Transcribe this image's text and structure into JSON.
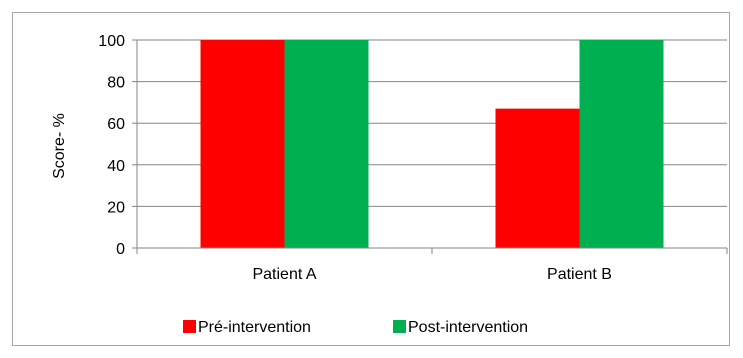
{
  "chart_data": {
    "type": "bar",
    "categories": [
      "Patient A",
      "Patient B"
    ],
    "series": [
      {
        "name": "Pré-intervention",
        "values": [
          100,
          67
        ],
        "color": "#ff0000"
      },
      {
        "name": "Post-intervention",
        "values": [
          100,
          100
        ],
        "color": "#00b050"
      }
    ],
    "title": "",
    "xlabel": "",
    "ylabel": "Score- %",
    "ylim": [
      0,
      100
    ],
    "yticks": [
      0,
      20,
      40,
      60,
      80,
      100
    ],
    "grid": true,
    "legend_position": "bottom"
  }
}
